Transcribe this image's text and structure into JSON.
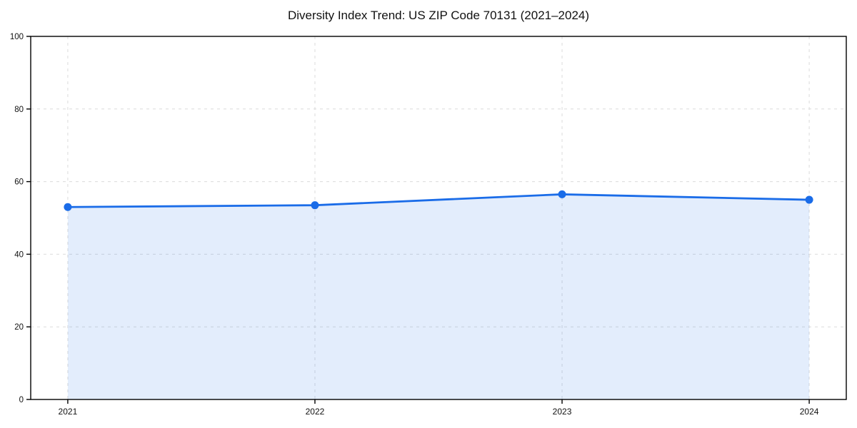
{
  "chart_data": {
    "type": "area",
    "title": "Diversity Index Trend: US ZIP Code 70131 (2021–2024)",
    "x": [
      2021,
      2022,
      2023,
      2024
    ],
    "x_tick_labels": [
      "2021",
      "2022",
      "2023",
      "2024"
    ],
    "values": [
      53.0,
      53.5,
      56.5,
      55.0
    ],
    "xlabel": "",
    "ylabel": "",
    "ylim": [
      0,
      100
    ],
    "yticks": [
      0,
      20,
      40,
      60,
      80,
      100
    ],
    "y_tick_labels": [
      "0",
      "20",
      "40",
      "60",
      "80",
      "100"
    ],
    "x_margin_frac": 0.05,
    "grid": true,
    "grid_style": "dashed",
    "legend": "none",
    "marker": "circle",
    "colors": {
      "line": "#1a6ce8",
      "area_fill": "#1a6ce8",
      "area_opacity": 0.12,
      "grid": "#dcdcdc",
      "spine": "#000000",
      "text": "#111111",
      "background": "#ffffff"
    }
  }
}
